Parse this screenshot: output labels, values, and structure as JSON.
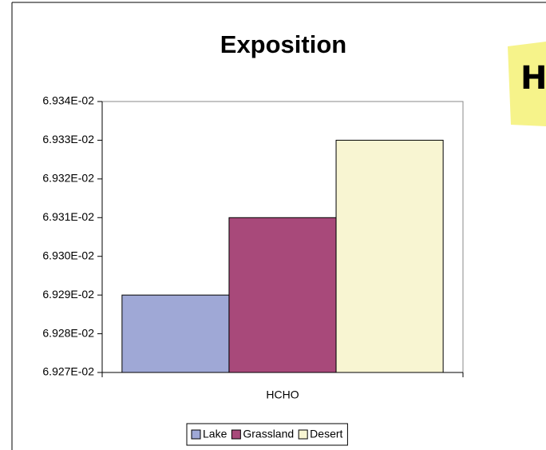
{
  "chart_data": {
    "type": "bar",
    "title": "Exposition",
    "categories": [
      "HCHO"
    ],
    "series": [
      {
        "name": "Lake",
        "color": "#9fa8d6",
        "values": [
          0.06929
        ]
      },
      {
        "name": "Grassland",
        "color": "#a8497a",
        "values": [
          0.06931
        ]
      },
      {
        "name": "Desert",
        "color": "#f8f5d2",
        "values": [
          0.06933
        ]
      }
    ],
    "ylim": [
      0.06927,
      0.06934
    ],
    "yticks": [
      {
        "value": 0.06927,
        "label": "6.927E-02"
      },
      {
        "value": 0.06928,
        "label": "6.928E-02"
      },
      {
        "value": 0.06929,
        "label": "6.929E-02"
      },
      {
        "value": 0.0693,
        "label": "6.930E-02"
      },
      {
        "value": 0.06931,
        "label": "6.931E-02"
      },
      {
        "value": 0.06932,
        "label": "6.932E-02"
      },
      {
        "value": 0.06933,
        "label": "6.933E-02"
      },
      {
        "value": 0.06934,
        "label": "6.934E-02"
      }
    ],
    "grid": false,
    "legend": "bottom"
  },
  "note": "H"
}
